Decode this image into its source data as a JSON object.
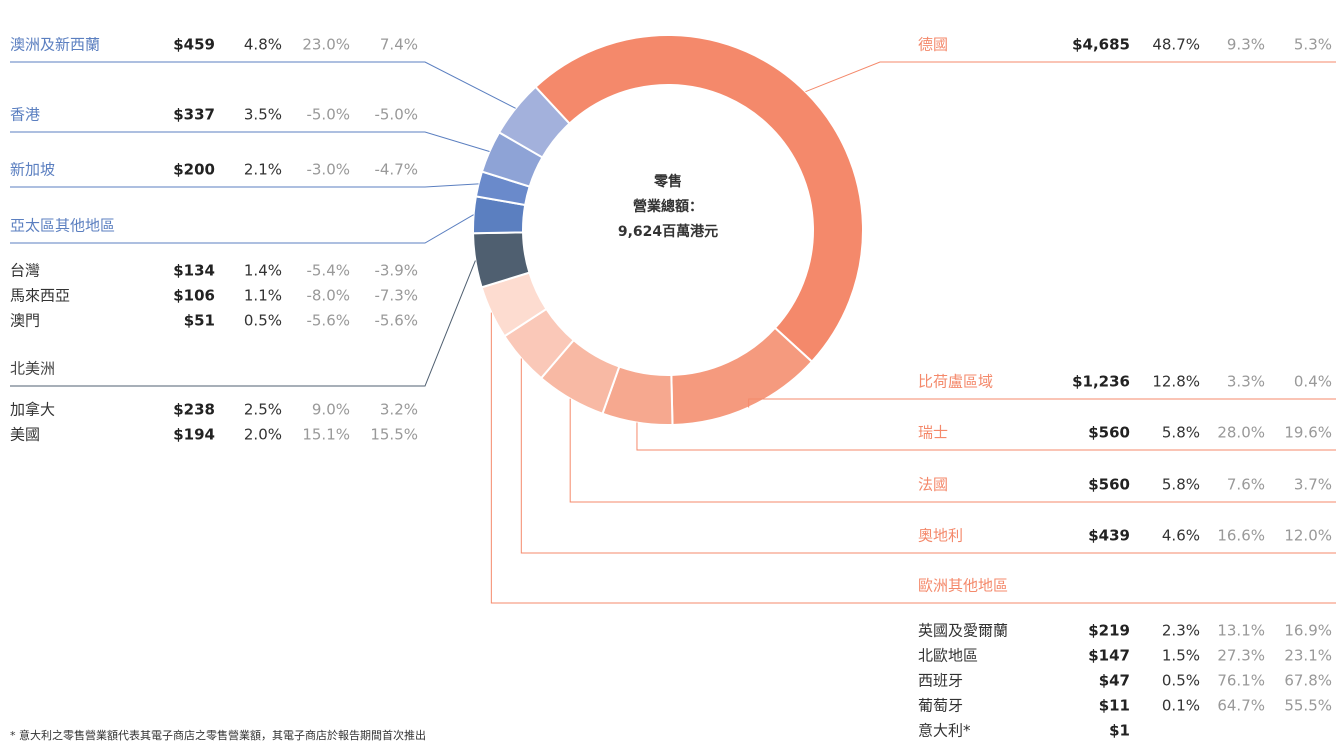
{
  "chart_data": {
    "type": "donut",
    "center": [
      "零售",
      "營業總額：",
      "9,624百萬港元"
    ],
    "groups": [
      {
        "name": "德國",
        "color": "#f4896b",
        "rows": [
          {
            "value": 4685,
            "value_label": "$4,685",
            "share": "48.7%",
            "change_1": "9.3%",
            "change_2": "5.3%"
          }
        ]
      },
      {
        "name": "比荷盧區域",
        "color": "#f59a7e",
        "rows": [
          {
            "value": 1236,
            "value_label": "$1,236",
            "share": "12.8%",
            "change_1": "3.3%",
            "change_2": "0.4%"
          }
        ]
      },
      {
        "name": "瑞士",
        "color": "#f6a88f",
        "rows": [
          {
            "value": 560,
            "value_label": "$560",
            "share": "5.8%",
            "change_1": "28.0%",
            "change_2": "19.6%"
          }
        ]
      },
      {
        "name": "法國",
        "color": "#f8b9a4",
        "rows": [
          {
            "value": 560,
            "value_label": "$560",
            "share": "5.8%",
            "change_1": "7.6%",
            "change_2": "3.7%"
          }
        ]
      },
      {
        "name": "奧地利",
        "color": "#fac8b8",
        "rows": [
          {
            "value": 439,
            "value_label": "$439",
            "share": "4.6%",
            "change_1": "16.6%",
            "change_2": "12.0%"
          }
        ]
      },
      {
        "name": "歐洲其他地區",
        "color": "#fddcd0",
        "rows": [
          {
            "name": "英國及愛爾蘭",
            "value": 219,
            "value_label": "$219",
            "share": "2.3%",
            "change_1": "13.1%",
            "change_2": "16.9%"
          },
          {
            "name": "北歐地區",
            "value": 147,
            "value_label": "$147",
            "share": "1.5%",
            "change_1": "27.3%",
            "change_2": "23.1%"
          },
          {
            "name": "西班牙",
            "value": 47,
            "value_label": "$47",
            "share": "0.5%",
            "change_1": "76.1%",
            "change_2": "67.8%"
          },
          {
            "name": "葡萄牙",
            "value": 11,
            "value_label": "$11",
            "share": "0.1%",
            "change_1": "64.7%",
            "change_2": "55.5%"
          },
          {
            "name": "意大利*",
            "value": 1,
            "value_label": "$1"
          }
        ]
      },
      {
        "name": "北美洲",
        "color": "#4f5f70",
        "rows": [
          {
            "name": "加拿大",
            "value": 238,
            "value_label": "$238",
            "share": "2.5%",
            "change_1": "9.0%",
            "change_2": "3.2%"
          },
          {
            "name": "美國",
            "value": 194,
            "value_label": "$194",
            "share": "2.0%",
            "change_1": "15.1%",
            "change_2": "15.5%"
          }
        ]
      },
      {
        "name": "亞太區其他地區",
        "color": "#5b7fc0",
        "rows": [
          {
            "name": "台灣",
            "value": 134,
            "value_label": "$134",
            "share": "1.4%",
            "change_1": "-5.4%",
            "change_2": "-3.9%"
          },
          {
            "name": "馬來西亞",
            "value": 106,
            "value_label": "$106",
            "share": "1.1%",
            "change_1": "-8.0%",
            "change_2": "-7.3%"
          },
          {
            "name": "澳門",
            "value": 51,
            "value_label": "$51",
            "share": "0.5%",
            "change_1": "-5.6%",
            "change_2": "-5.6%"
          }
        ]
      },
      {
        "name": "新加坡",
        "color": "#6a8acb",
        "rows": [
          {
            "value": 200,
            "value_label": "$200",
            "share": "2.1%",
            "change_1": "-3.0%",
            "change_2": "-4.7%"
          }
        ]
      },
      {
        "name": "香港",
        "color": "#8ea3d6",
        "rows": [
          {
            "value": 337,
            "value_label": "$337",
            "share": "3.5%",
            "change_1": "-5.0%",
            "change_2": "-5.0%"
          }
        ]
      },
      {
        "name": "澳洲及新西蘭",
        "color": "#a3b1dc",
        "rows": [
          {
            "value": 459,
            "value_label": "$459",
            "share": "4.8%",
            "change_1": "23.0%",
            "change_2": "7.4%"
          }
        ]
      }
    ],
    "footnote": "* 意大利之零售營業額代表其電子商店之零售營業額，其電子商店於報告期間首次推出"
  }
}
